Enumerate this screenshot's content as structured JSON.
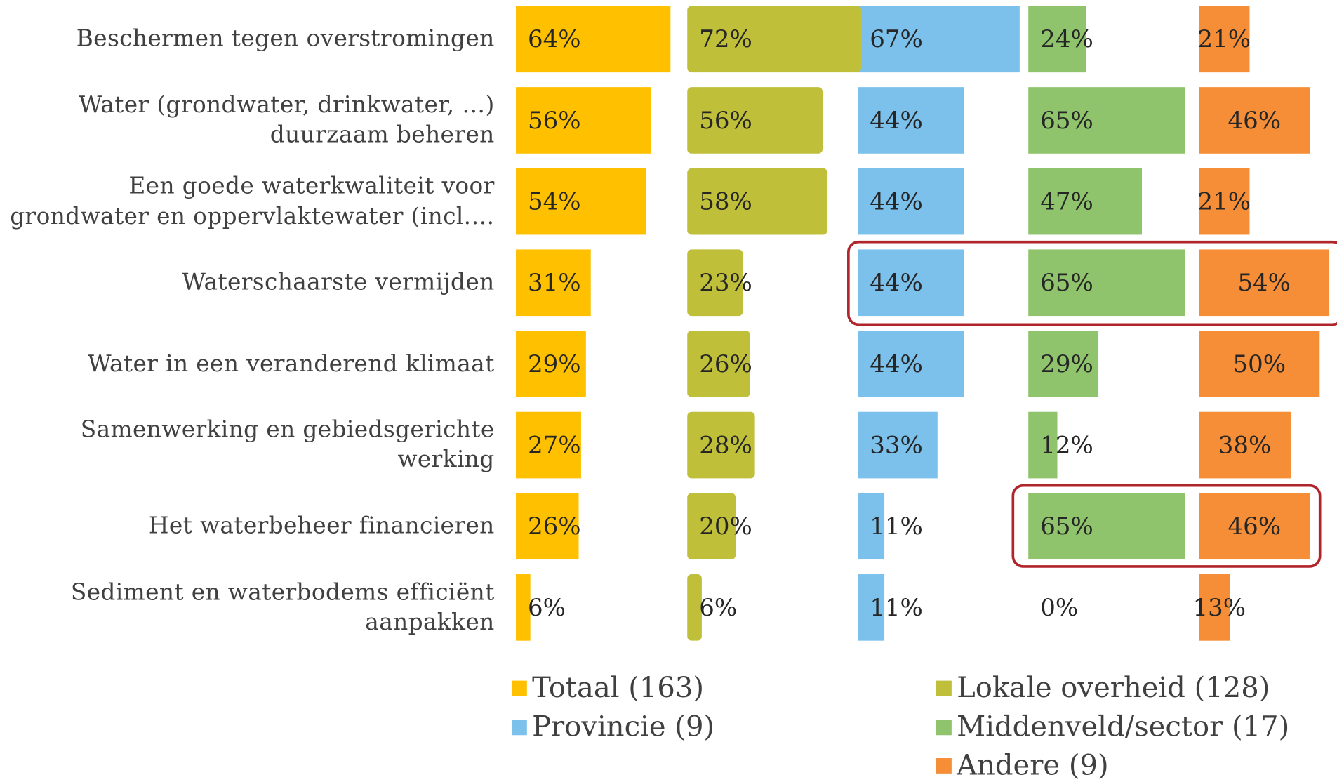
{
  "chart_data": {
    "type": "bar",
    "orientation": "horizontal",
    "categories": [
      "Beschermen tegen overstromingen",
      "Water (grondwater, drinkwater, …)\nduurzaam beheren",
      "Een goede waterkwaliteit voor\ngrondwater en oppervlaktewater (incl.…",
      "Waterschaarste vermijden",
      "Water in een veranderend klimaat",
      "Samenwerking en gebiedsgerichte\nwerking",
      "Het waterbeheer financieren",
      "Sediment en waterbodems efficiënt\naanpakken"
    ],
    "series": [
      {
        "name": "Totaal (163)",
        "color": "#ffc000",
        "values": [
          64,
          56,
          54,
          31,
          29,
          27,
          26,
          6
        ],
        "value_labels": [
          "64%",
          "56%",
          "54%",
          "31%",
          "29%",
          "27%",
          "26%",
          "6%"
        ]
      },
      {
        "name": "Lokale overheid (128)",
        "color": "#bfbf3a",
        "values": [
          72,
          56,
          58,
          23,
          26,
          28,
          20,
          6
        ],
        "value_labels": [
          "72%",
          "56%",
          "58%",
          "23%",
          "26%",
          "28%",
          "20%",
          "6%"
        ]
      },
      {
        "name": "Provincie (9)",
        "color": "#7cc0ec",
        "values": [
          67,
          44,
          44,
          44,
          44,
          33,
          11,
          11
        ],
        "value_labels": [
          "67%",
          "44%",
          "44%",
          "44%",
          "44%",
          "33%",
          "11%",
          "11%"
        ]
      },
      {
        "name": "Middenveld/sector (17)",
        "color": "#8fc46c",
        "values": [
          24,
          65,
          47,
          65,
          29,
          12,
          65,
          0
        ],
        "value_labels": [
          "24%",
          "65%",
          "47%",
          "65%",
          "29%",
          "12%",
          "65%",
          "0%"
        ]
      },
      {
        "name": "Andere (9)",
        "color": "#f68e37",
        "values": [
          21,
          46,
          21,
          54,
          50,
          38,
          46,
          13
        ],
        "value_labels": [
          "21%",
          "46%",
          "21%",
          "54%",
          "50%",
          "38%",
          "46%",
          "13%"
        ]
      }
    ],
    "xlim": [
      0,
      72
    ],
    "legend": "bottom"
  }
}
